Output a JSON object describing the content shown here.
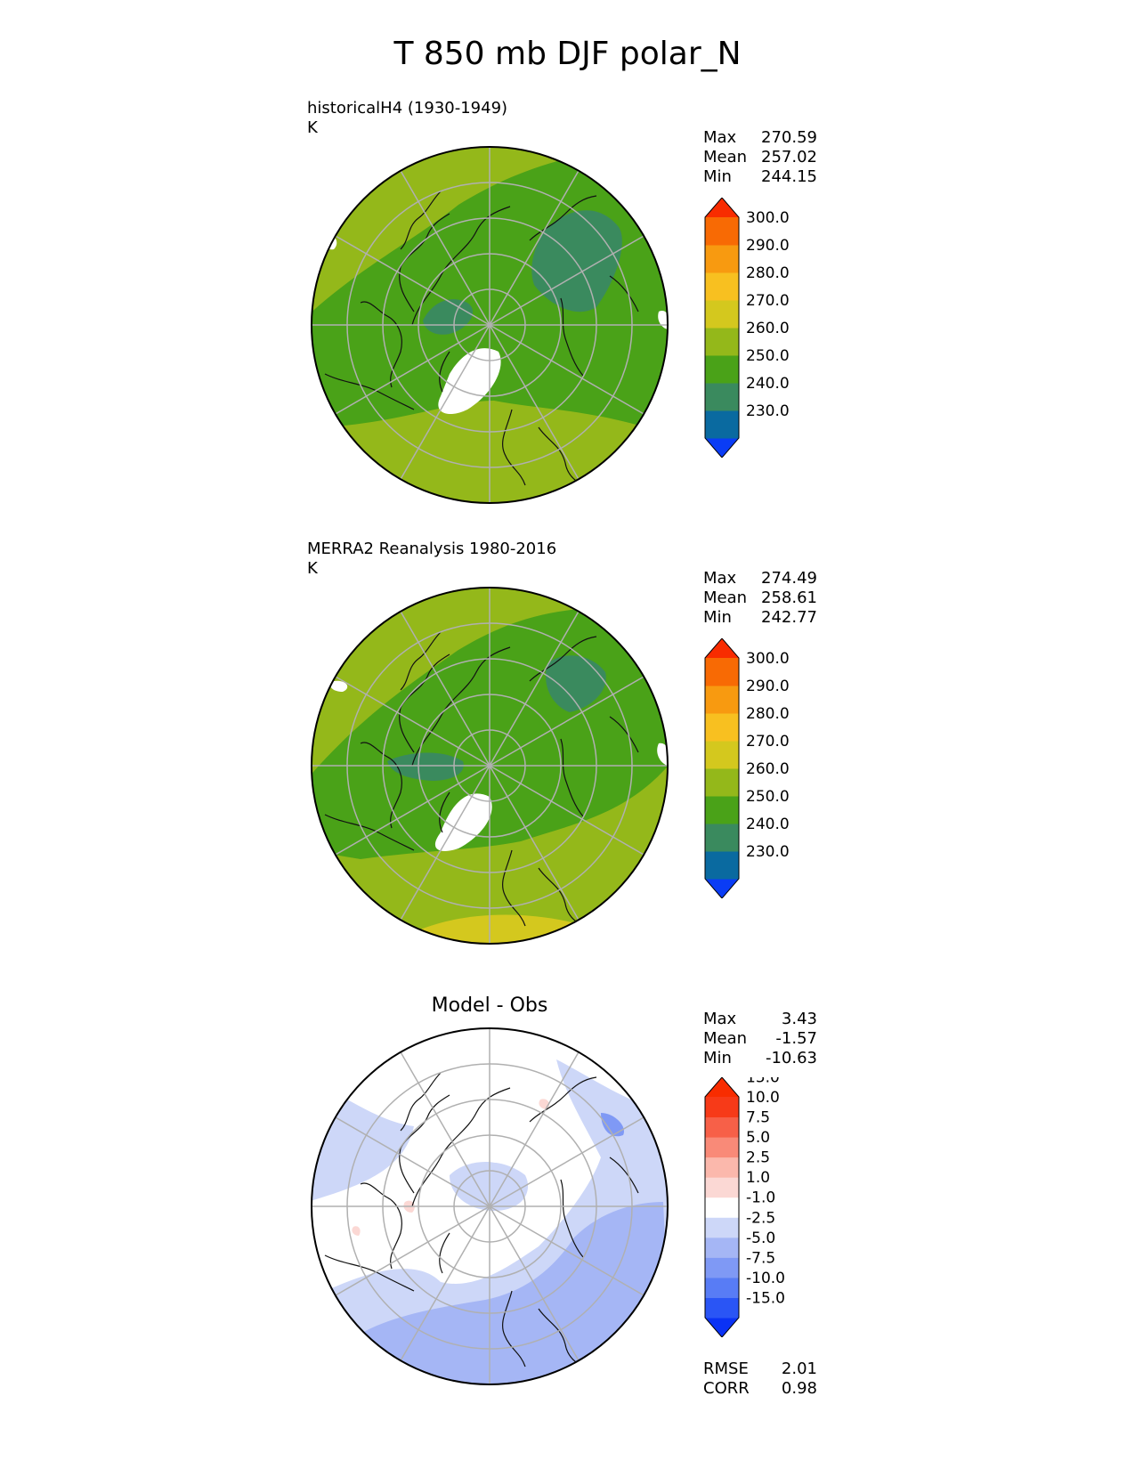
{
  "figure": {
    "title": "T 850 mb DJF polar_N"
  },
  "chart_data": [
    {
      "type": "heatmap",
      "title": "historicalH4 (1930-1949)",
      "units": "K",
      "projection": "north polar stereographic",
      "stats": {
        "max": "270.59",
        "mean": "257.02",
        "min": "244.15"
      },
      "colorbar": {
        "levels": [
          "230.0",
          "240.0",
          "250.0",
          "260.0",
          "270.0",
          "280.0",
          "290.0",
          "300.0",
          "310.0"
        ],
        "colors": [
          "#0a3cf5",
          "#0a6aa0",
          "#3a8a5e",
          "#4aa218",
          "#94b81a",
          "#d4c81e",
          "#f8c020",
          "#f89a10",
          "#f86a04",
          "#f82c00"
        ]
      },
      "grid": true
    },
    {
      "type": "heatmap",
      "title": "MERRA2 Reanalysis 1980-2016",
      "units": "K",
      "projection": "north polar stereographic",
      "stats": {
        "max": "274.49",
        "mean": "258.61",
        "min": "242.77"
      },
      "colorbar": {
        "levels": [
          "230.0",
          "240.0",
          "250.0",
          "260.0",
          "270.0",
          "280.0",
          "290.0",
          "300.0",
          "310.0"
        ],
        "colors": [
          "#0a3cf5",
          "#0a6aa0",
          "#3a8a5e",
          "#4aa218",
          "#94b81a",
          "#d4c81e",
          "#f8c020",
          "#f89a10",
          "#f86a04",
          "#f82c00"
        ]
      },
      "grid": true
    },
    {
      "type": "heatmap",
      "title": "Model - Obs",
      "units": "",
      "projection": "north polar stereographic",
      "stats": {
        "max": "3.43",
        "mean": "-1.57",
        "min": "-10.63"
      },
      "colorbar": {
        "levels": [
          "-15.0",
          "-10.0",
          "-7.5",
          "-5.0",
          "-2.5",
          "-1.0",
          "1.0",
          "2.5",
          "5.0",
          "7.5",
          "10.0",
          "15.0"
        ],
        "colors": [
          "#0a32f5",
          "#2a55f5",
          "#587cf5",
          "#7f99f5",
          "#a5b6f5",
          "#cdd7f8",
          "#ffffff",
          "#fbd8d4",
          "#fbb8ac",
          "#f98a78",
          "#f76048",
          "#f73a18",
          "#f82c00"
        ]
      },
      "metrics": {
        "rmse_label": "RMSE",
        "rmse": "2.01",
        "corr_label": "CORR",
        "corr": "0.98"
      },
      "grid": true
    }
  ]
}
